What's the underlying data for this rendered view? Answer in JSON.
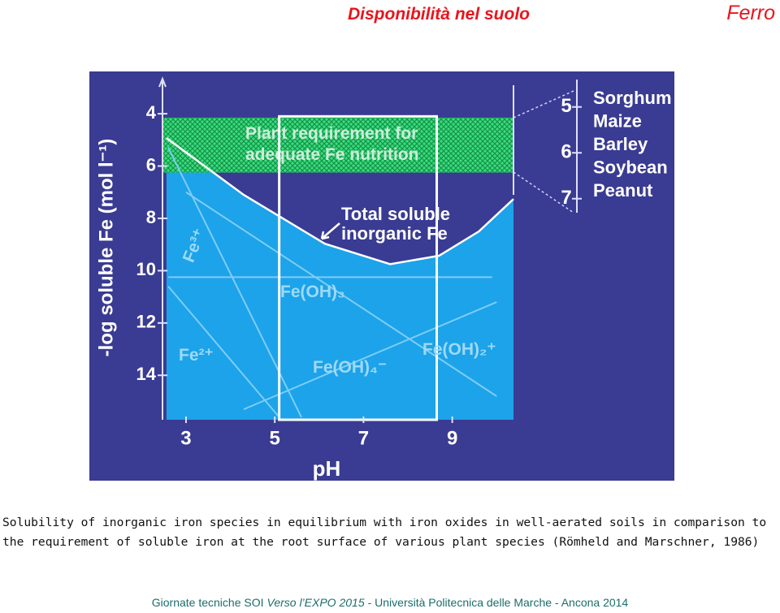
{
  "header": {
    "title": "Disponibilità nel suolo",
    "topic": "Ferro"
  },
  "chart_data": {
    "type": "line",
    "x_label": "pH",
    "y_label": "-log soluble Fe (mol l⁻¹)",
    "xlim": [
      2.47,
      10.38
    ],
    "xticks": [
      3,
      5,
      7,
      9
    ],
    "ylim": [
      2.6,
      15.7
    ],
    "yticks": [
      4,
      6,
      8,
      10,
      12,
      14
    ],
    "y_reversed": true,
    "y2lim": [
      4.35,
      11.82
    ],
    "y2ticks": [
      5,
      6,
      7
    ],
    "y2_labels": [
      "Sorghum",
      "Maize",
      "Barley",
      "Soybean",
      "Peanut"
    ],
    "background": "#3a3b92",
    "fill_color": "#1ca3ea",
    "requirement_band": {
      "label": "Plant requirement for adequate Fe nutrition",
      "ylim": [
        4.15,
        6.25
      ],
      "color": "#35e07c"
    },
    "highlight": {
      "xlim": [
        5.1,
        8.65
      ],
      "ylim": [
        4.1,
        15.7
      ],
      "color": "#ffffff"
    },
    "series": [
      {
        "name": "Total soluble inorganic Fe",
        "color": "#ffffff",
        "x": [
          2.56,
          4.3,
          6.13,
          7.6,
          8.7,
          9.6,
          10.38
        ],
        "values": [
          4.93,
          7.1,
          8.97,
          9.75,
          9.43,
          8.5,
          7.26
        ]
      },
      {
        "name": "Fe³⁺",
        "color": "#7fcdf5",
        "x": [
          2.6,
          5.6
        ],
        "values": [
          5.3,
          15.6
        ]
      },
      {
        "name": "Fe(OH)₃",
        "color": "#7fcdf5",
        "x": [
          2.6,
          9.9
        ],
        "values": [
          10.25,
          10.25
        ]
      },
      {
        "name": "Fe²⁺",
        "color": "#7fcdf5",
        "x": [
          2.6,
          5.1
        ],
        "values": [
          10.6,
          15.6
        ]
      },
      {
        "name": "Fe(OH)₄⁻",
        "color": "#7fcdf5",
        "x": [
          4.3,
          10.0
        ],
        "values": [
          15.3,
          11.2
        ]
      },
      {
        "name": "Fe(OH)₂⁺",
        "color": "#7fcdf5",
        "x": [
          3.0,
          10.0
        ],
        "values": [
          7.0,
          14.8
        ]
      }
    ]
  },
  "caption": "Solubility of inorganic iron species in equilibrium with iron oxides in well-aerated soils in comparison to the requirement of soluble iron at the root surface of various plant species (Römheld and Marschner, 1986)",
  "footer": {
    "part1": "Giornate tecniche SOI",
    "italic": "Verso l’EXPO 2015",
    "part2": "-  Università Politecnica delle Marche - Ancona 2014"
  }
}
